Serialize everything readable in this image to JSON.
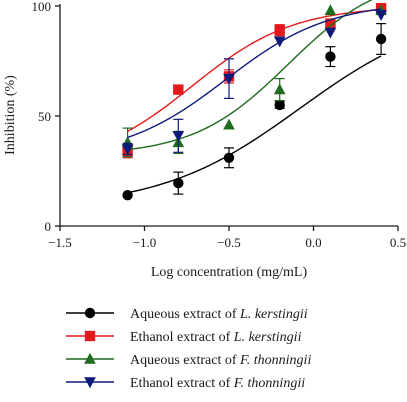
{
  "chart_data": {
    "type": "scatter",
    "title": "",
    "xlabel": "Log concentration (mg/mL)",
    "ylabel": "Inhibition (%)",
    "xlim": [
      -1.5,
      0.5
    ],
    "ylim": [
      0,
      100
    ],
    "xticks": [
      -1.5,
      -1.0,
      -0.5,
      0.0,
      0.5
    ],
    "xtick_labels": [
      "−1.5",
      "−1.0",
      "−0.5",
      "0.0",
      "0.5"
    ],
    "yticks": [
      0,
      50,
      100
    ],
    "ytick_labels": [
      "0",
      "50",
      "100"
    ],
    "grid": false,
    "legend_position": "bottom",
    "series": [
      {
        "name": "Aqueous extract of L. kerstingii",
        "name_plain": "Aqueous extract of ",
        "name_italic": "L. kerstingii",
        "marker": "circle",
        "color": "#000000",
        "x": [
          -1.1,
          -0.8,
          -0.5,
          -0.2,
          0.1,
          0.4
        ],
        "y": [
          14,
          19.5,
          31,
          55,
          77,
          85
        ],
        "err": [
          0,
          5,
          4.5,
          1.5,
          4.5,
          7
        ],
        "fit": {
          "bottom": 8,
          "top": 99,
          "logEC50": -0.08,
          "hill": 1.05
        }
      },
      {
        "name": "Ethanol extract of L. kerstingii",
        "name_plain": "Ethanol extract of ",
        "name_italic": "L. kerstingii",
        "marker": "square",
        "color": "#e31a1c",
        "x": [
          -1.1,
          -0.8,
          -0.5,
          -0.2,
          0.1,
          0.4
        ],
        "y": [
          34,
          62,
          68,
          89,
          92,
          99
        ],
        "err": [
          3,
          1.5,
          3,
          2.5,
          2,
          1.5
        ],
        "fit": {
          "bottom": 27,
          "top": 100,
          "logEC50": -0.72,
          "hill": 1.45
        }
      },
      {
        "name": "Aqueous extract of F. thonningii",
        "name_plain": "Aqueous extract of ",
        "name_italic": "F. thonningii",
        "marker": "triangle-up",
        "color": "#1f6b1f",
        "x": [
          -1.1,
          -0.8,
          -0.5,
          -0.2,
          0.1,
          0.4
        ],
        "y": [
          38,
          38,
          46,
          62,
          98,
          98
        ],
        "err": [
          6.5,
          5,
          0,
          5,
          0,
          0
        ],
        "fit": {
          "bottom": 32,
          "top": 115,
          "logEC50": -0.15,
          "hill": 1.55
        }
      },
      {
        "name": "Ethanol extract of F. thonningii",
        "name_plain": "Ethanol extract of ",
        "name_italic": "F. thonningii",
        "marker": "triangle-down",
        "color": "#0d1a7a",
        "x": [
          -1.1,
          -0.8,
          -0.5,
          -0.2,
          0.1,
          0.4
        ],
        "y": [
          35,
          41,
          67,
          84,
          88,
          96
        ],
        "err": [
          2.5,
          7.5,
          9,
          0,
          0,
          0
        ],
        "fit": {
          "bottom": 31,
          "top": 102,
          "logEC50": -0.52,
          "hill": 1.42
        }
      }
    ]
  }
}
